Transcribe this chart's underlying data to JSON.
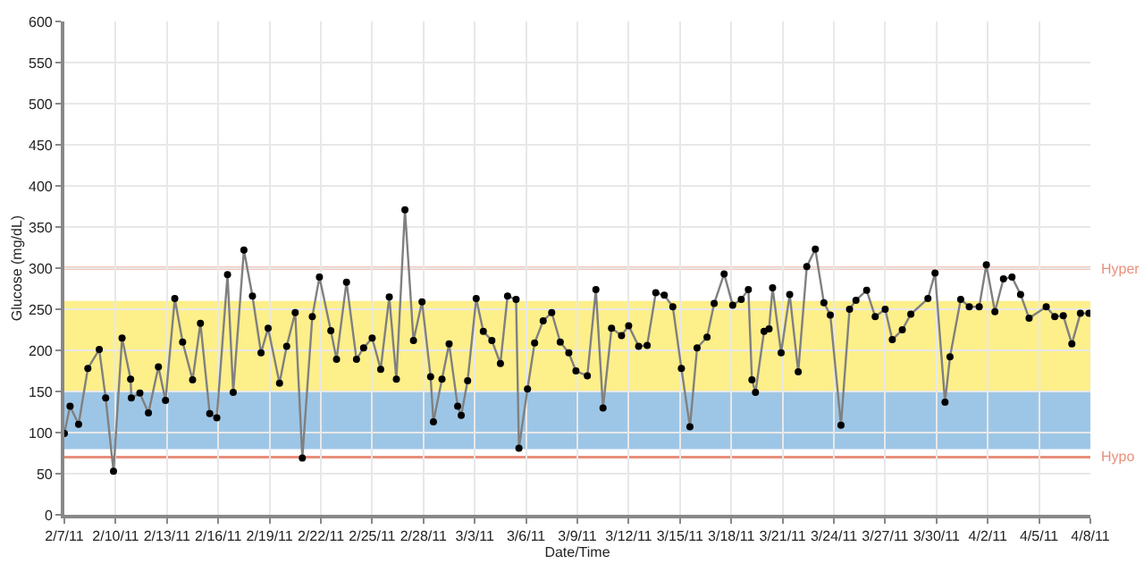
{
  "chart_data": {
    "type": "line",
    "xlabel": "Date/Time",
    "ylabel": "Glucose (mg/dL)",
    "x": [
      "--02-07T00:00",
      "--02-07T08:00",
      "--02-07T20:00",
      "--02-08T09:00",
      "--02-09T01:00",
      "--02-09T10:00",
      "--02-09T21:00",
      "--02-10T09:00",
      "--02-10T21:00",
      "--02-10T22:00",
      "--02-11T10:00",
      "--02-11T22:00",
      "--02-12T12:00",
      "--02-12T22:00",
      "--02-13T11:00",
      "--02-13T22:00",
      "--02-14T12:00",
      "--02-14T23:00",
      "--02-15T12:00",
      "--02-15T22:00",
      "--02-16T13:00",
      "--02-16T21:00",
      "--02-17T12:00",
      "--02-18T00:00",
      "--02-18T12:00",
      "--02-18T22:00",
      "--02-19T14:00",
      "--02-20T00:00",
      "--02-20T12:00",
      "--02-20T22:00",
      "--02-21T12:00",
      "--02-21T22:00",
      "--02-22T14:00",
      "--02-22T22:00",
      "--02-23T12:00",
      "--02-24T02:00",
      "--02-24T12:00",
      "--02-25T00:00",
      "--02-25T12:00",
      "--02-26T00:00",
      "--02-26T10:00",
      "--02-26T22:00",
      "--02-27T10:00",
      "--02-27T22:00",
      "--02-28T10:00",
      "--02-28T14:00",
      "--03-01T02:00",
      "--03-01T12:00",
      "--03-02T00:00",
      "--03-02T05:00",
      "--03-02T14:00",
      "--03-03T02:00",
      "--03-03T12:00",
      "--03-04T00:00",
      "--03-04T12:00",
      "--03-04T22:00",
      "--03-05T10:00",
      "--03-05T14:00",
      "--03-06T02:00",
      "--03-06T12:00",
      "--03-07T00:00",
      "--03-07T12:00",
      "--03-08T00:00",
      "--03-08T12:00",
      "--03-08T22:00",
      "--03-09T14:00",
      "--03-10T02:00",
      "--03-10T12:00",
      "--03-11T00:00",
      "--03-11T14:00",
      "--03-12T00:00",
      "--03-12T14:00",
      "--03-13T02:00",
      "--03-13T14:00",
      "--03-14T02:00",
      "--03-14T14:00",
      "--03-15T02:00",
      "--03-15T14:00",
      "--03-16T00:00",
      "--03-16T14:00",
      "--03-17T00:00",
      "--03-17T14:00",
      "--03-18T02:00",
      "--03-18T14:00",
      "--03-19T00:00",
      "--03-19T05:00",
      "--03-19T10:00",
      "--03-19T22:00",
      "--03-20T05:00",
      "--03-20T10:00",
      "--03-20T22:00",
      "--03-21T10:00",
      "--03-21T22:00",
      "--03-22T10:00",
      "--03-22T22:00",
      "--03-23T10:00",
      "--03-23T19:00",
      "--03-24T10:00",
      "--03-24T22:00",
      "--03-25T07:00",
      "--03-25T22:00",
      "--03-26T10:00",
      "--03-27T00:00",
      "--03-27T10:00",
      "--03-28T00:00",
      "--03-28T12:00",
      "--03-29T12:00",
      "--03-29T22:00",
      "--03-30T12:00",
      "--03-30T19:00",
      "--03-31T10:00",
      "--03-31T22:00",
      "--04-01T12:00",
      "--04-01T22:00",
      "--04-02T10:00",
      "--04-02T22:00",
      "--04-03T10:00",
      "--04-03T22:00",
      "--04-04T10:00",
      "--04-05T10:00",
      "--04-05T22:00",
      "--04-06T10:00",
      "--04-06T22:00",
      "--04-07T10:00",
      "--04-07T22:00"
    ],
    "series": [
      {
        "color": "#808080",
        "values": [
          99,
          132,
          110,
          178,
          201,
          142,
          53,
          215,
          165,
          142,
          148,
          124,
          180,
          139,
          263,
          210,
          164,
          233,
          123,
          118,
          292,
          149,
          322,
          266,
          197,
          227,
          160,
          205,
          246,
          69,
          241,
          289,
          224,
          189,
          283,
          189,
          203,
          215,
          177,
          265,
          165,
          371,
          212,
          259,
          168,
          113,
          165,
          208,
          132,
          121,
          163,
          263,
          223,
          212,
          184,
          266,
          262,
          81,
          153,
          209,
          236,
          246,
          210,
          197,
          175,
          169,
          274,
          130,
          227,
          218,
          230,
          205,
          206,
          270,
          267,
          253,
          178,
          107,
          203,
          216,
          257,
          293,
          255,
          262,
          274,
          164,
          149,
          223,
          226,
          276,
          197,
          268,
          174,
          302,
          323,
          258,
          243,
          109,
          250,
          261,
          273,
          241,
          250,
          213,
          225,
          244,
          263,
          294,
          137,
          192,
          262,
          253,
          253,
          304,
          247,
          287,
          289,
          268,
          239,
          253,
          241,
          242,
          208,
          245,
          245
        ]
      }
    ],
    "xlim": [
      "--02-07",
      "--04-08"
    ],
    "xticks": [
      {
        "value": "--02-07",
        "label": "2/7/11"
      },
      {
        "value": "--02-10",
        "label": "2/10/11"
      },
      {
        "value": "--02-13",
        "label": "2/13/11"
      },
      {
        "value": "--02-16",
        "label": "2/16/11"
      },
      {
        "value": "--02-19",
        "label": "2/19/11"
      },
      {
        "value": "--02-22",
        "label": "2/22/11"
      },
      {
        "value": "--02-25",
        "label": "2/25/11"
      },
      {
        "value": "--02-28",
        "label": "2/28/11"
      },
      {
        "value": "--03-03",
        "label": "3/3/11"
      },
      {
        "value": "--03-06",
        "label": "3/6/11"
      },
      {
        "value": "--03-09",
        "label": "3/9/11"
      },
      {
        "value": "--03-12",
        "label": "3/12/11"
      },
      {
        "value": "--03-15",
        "label": "3/15/11"
      },
      {
        "value": "--03-18",
        "label": "3/18/11"
      },
      {
        "value": "--03-21",
        "label": "3/21/11"
      },
      {
        "value": "--03-24",
        "label": "3/24/11"
      },
      {
        "value": "--03-27",
        "label": "3/27/11"
      },
      {
        "value": "--03-30",
        "label": "3/30/11"
      },
      {
        "value": "--04-02",
        "label": "4/2/11"
      },
      {
        "value": "--04-05",
        "label": "4/5/11"
      },
      {
        "value": "--04-08",
        "label": "4/8/11"
      }
    ],
    "ylim": [
      0,
      600
    ],
    "yticks": [
      0,
      50,
      100,
      150,
      200,
      250,
      300,
      350,
      400,
      450,
      500,
      550,
      600
    ],
    "bands": [
      {
        "axis": "y",
        "from": 80,
        "to": 150,
        "color": "#9dc6e6"
      },
      {
        "axis": "y",
        "from": 150,
        "to": 260,
        "color": "#fdef8a"
      }
    ],
    "ref_lines": [
      {
        "axis": "y",
        "value": 300,
        "label": "Hyper",
        "color": "#e8907c"
      },
      {
        "axis": "y",
        "value": 70,
        "label": "Hypo",
        "color": "#e8907c"
      }
    ],
    "grid": true,
    "marker": "circle",
    "line_style": "solid",
    "legend": false
  }
}
